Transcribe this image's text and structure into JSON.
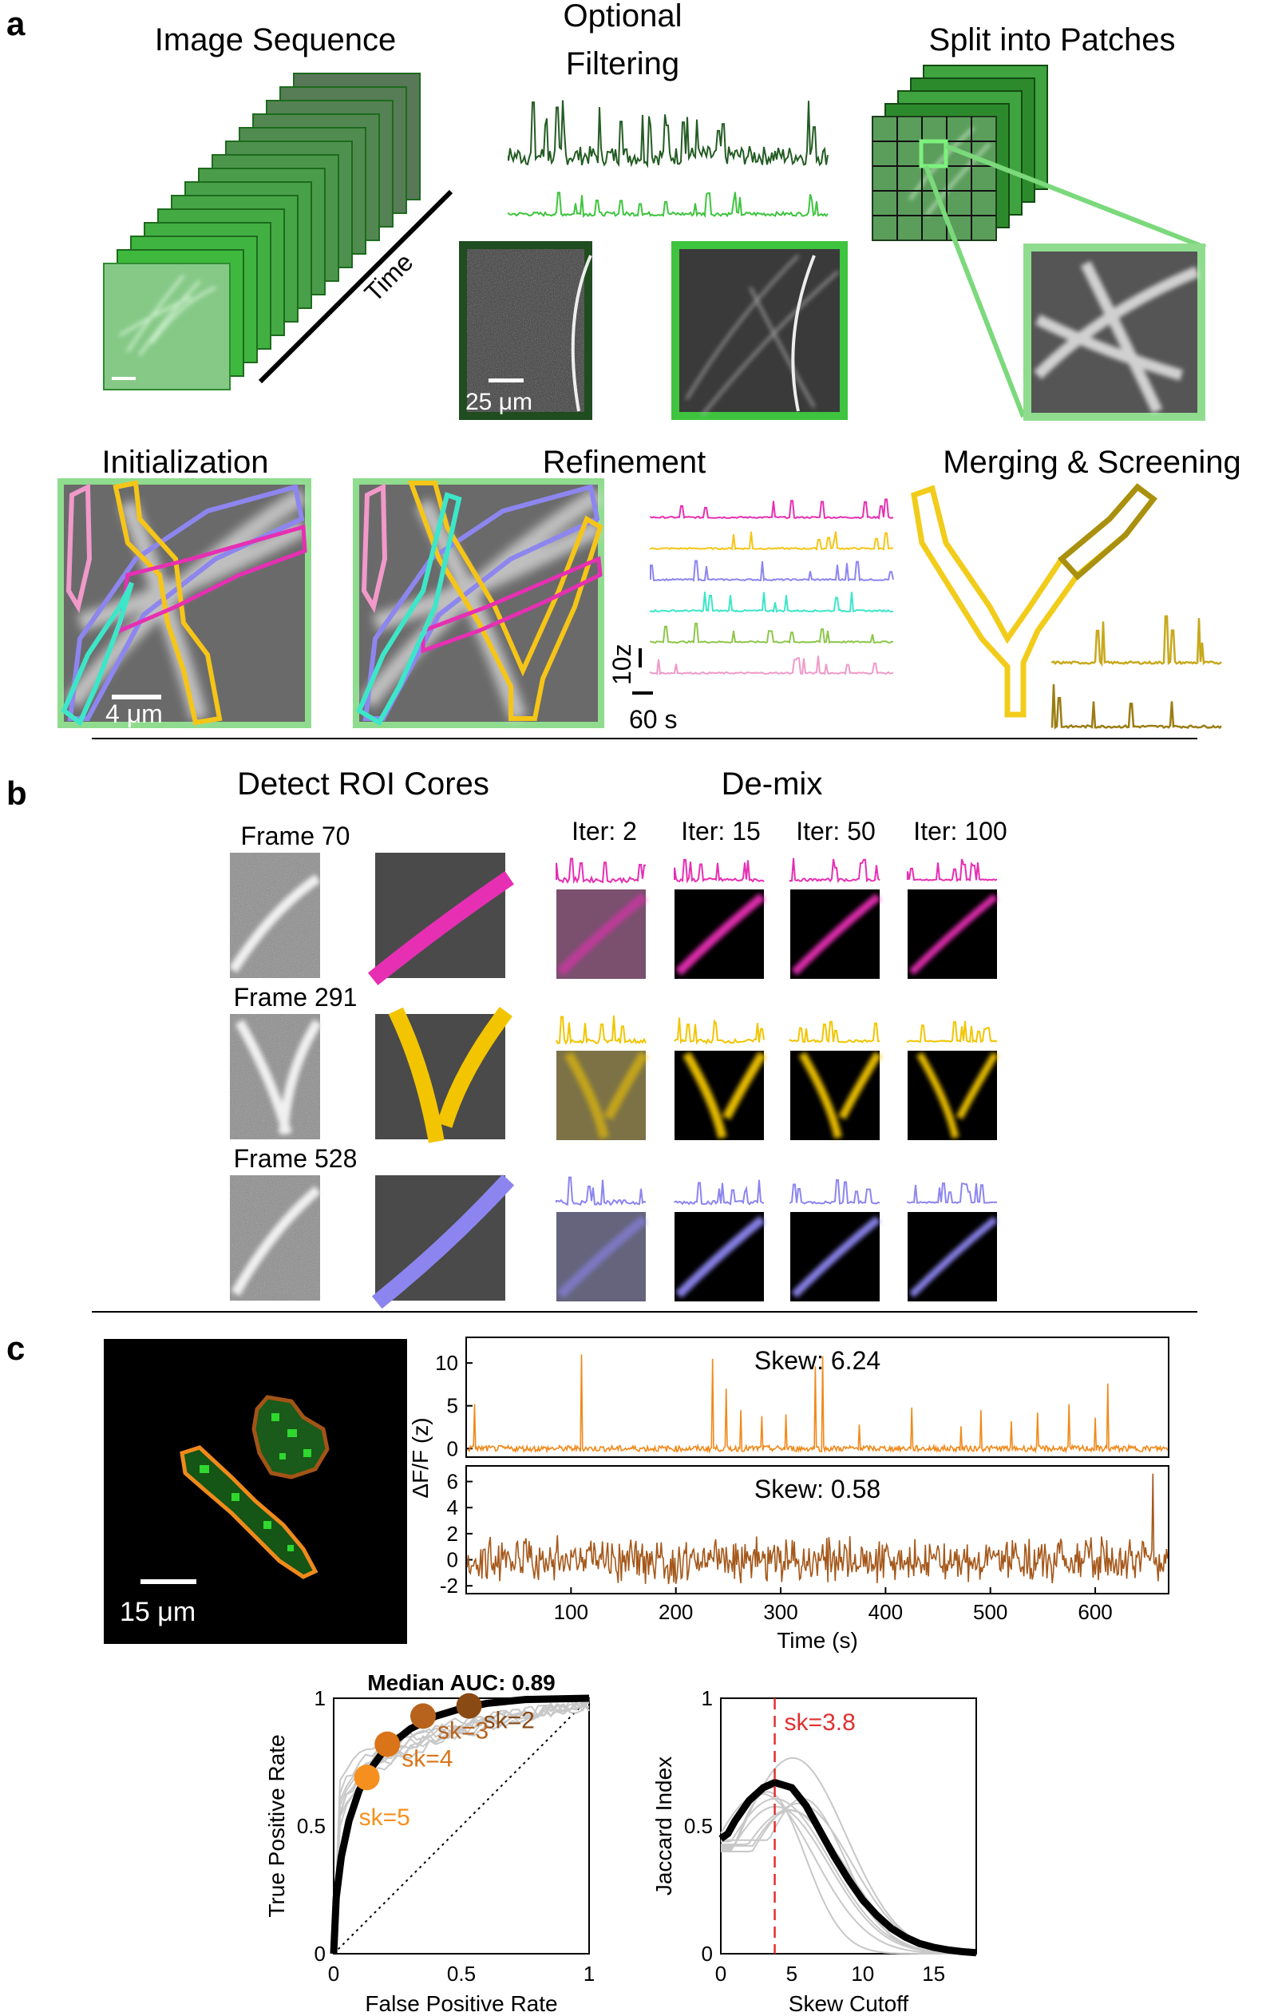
{
  "panel_a": {
    "letter": "a",
    "image_sequence": {
      "title": "Image Sequence",
      "time_label": "Time"
    },
    "filtering": {
      "title_line1": "Optional",
      "title_line2": "Filtering",
      "scale_label": "25 μm"
    },
    "patches": {
      "title": "Split into Patches"
    },
    "initialization": {
      "title": "Initialization",
      "scale_label": "4 μm"
    },
    "refinement": {
      "title": "Refinement"
    },
    "traces_scale": {
      "y_label": "10z",
      "x_label": "60 s"
    },
    "merging": {
      "title": "Merging & Screening"
    }
  },
  "panel_b": {
    "letter": "b",
    "detect_title": "Detect ROI Cores",
    "demix_title": "De-mix",
    "iterations": [
      "Iter: 2",
      "Iter: 15",
      "Iter: 50",
      "Iter: 100"
    ],
    "frames": [
      "Frame 70",
      "Frame 291",
      "Frame 528"
    ]
  },
  "panel_c": {
    "letter": "c",
    "roi_scale_label": "15 μm",
    "colors": {
      "orange": "#f0891b",
      "brown": "#a5581a",
      "gold": "#f2c500",
      "magenta": "#e62fb3",
      "violet": "#8c85ef"
    }
  },
  "chart_data": [
    {
      "type": "line",
      "id": "trace-orange",
      "title": "Skew: 6.24",
      "ylim": [
        -1,
        13
      ],
      "yticks": [
        "0",
        "5",
        "10"
      ],
      "xlim": [
        0,
        670
      ],
      "color": "#f0891b",
      "peaks": [
        [
          8,
          5.2
        ],
        [
          110,
          11
        ],
        [
          235,
          10.5
        ],
        [
          248,
          7
        ],
        [
          262,
          4.5
        ],
        [
          282,
          3.8
        ],
        [
          305,
          4
        ],
        [
          333,
          9.6
        ],
        [
          340,
          10.8
        ],
        [
          375,
          2.8
        ],
        [
          425,
          4.8
        ],
        [
          472,
          2.6
        ],
        [
          491,
          4.5
        ],
        [
          520,
          3.2
        ],
        [
          545,
          4.2
        ],
        [
          575,
          5.2
        ],
        [
          600,
          3.6
        ],
        [
          612,
          7.6
        ]
      ]
    },
    {
      "type": "line",
      "id": "trace-brown",
      "title": "Skew: 0.58",
      "ylabel": "ΔF/F (z)",
      "ylim": [
        -2.6,
        7.2
      ],
      "yticks": [
        "-2",
        "0",
        "2",
        "4",
        "6"
      ],
      "xlim": [
        0,
        670
      ],
      "xticks": [
        "100",
        "200",
        "300",
        "400",
        "500",
        "600"
      ],
      "xlabel": "Time (s)",
      "color": "#a5581a",
      "peaks": [
        [
          655,
          6.6
        ]
      ]
    },
    {
      "type": "line",
      "id": "roc",
      "title": "Median AUC: 0.89",
      "xlabel": "False Positive Rate",
      "ylabel": "True Positive Rate",
      "xlim": [
        0,
        1
      ],
      "ylim": [
        0,
        1
      ],
      "xticks": [
        "0",
        "0.5",
        "1"
      ],
      "yticks": [
        "0",
        "0.5",
        "1"
      ],
      "median_curve": [
        [
          0,
          0
        ],
        [
          0.01,
          0.22
        ],
        [
          0.03,
          0.38
        ],
        [
          0.06,
          0.52
        ],
        [
          0.1,
          0.64
        ],
        [
          0.15,
          0.73
        ],
        [
          0.2,
          0.8
        ],
        [
          0.3,
          0.88
        ],
        [
          0.4,
          0.93
        ],
        [
          0.5,
          0.96
        ],
        [
          0.6,
          0.98
        ],
        [
          0.75,
          0.995
        ],
        [
          1,
          1
        ]
      ],
      "points": [
        {
          "label": "sk=2",
          "fpr": 0.53,
          "tpr": 0.97,
          "color": "#8a4a14"
        },
        {
          "label": "sk=3",
          "fpr": 0.35,
          "tpr": 0.93,
          "color": "#b8631d"
        },
        {
          "label": "sk=4",
          "fpr": 0.21,
          "tpr": 0.82,
          "color": "#d97418"
        },
        {
          "label": "sk=5",
          "fpr": 0.13,
          "tpr": 0.69,
          "color": "#f5901e"
        }
      ]
    },
    {
      "type": "line",
      "id": "jaccard",
      "xlabel": "Skew Cutoff",
      "ylabel": "Jaccard Index",
      "xlim": [
        0,
        18
      ],
      "ylim": [
        0,
        1
      ],
      "xticks": [
        "0",
        "5",
        "10",
        "15"
      ],
      "yticks": [
        "0",
        "0.5",
        "1"
      ],
      "cutoff": 3.8,
      "cutoff_label": "sk=3.8",
      "median_curve": [
        [
          0,
          0.45
        ],
        [
          0.5,
          0.47
        ],
        [
          1,
          0.52
        ],
        [
          2,
          0.6
        ],
        [
          3,
          0.65
        ],
        [
          3.8,
          0.67
        ],
        [
          5,
          0.65
        ],
        [
          6,
          0.58
        ],
        [
          7,
          0.48
        ],
        [
          8,
          0.38
        ],
        [
          9,
          0.29
        ],
        [
          10,
          0.21
        ],
        [
          11,
          0.15
        ],
        [
          12,
          0.1
        ],
        [
          13,
          0.065
        ],
        [
          14,
          0.04
        ],
        [
          15,
          0.025
        ],
        [
          16,
          0.015
        ],
        [
          17,
          0.008
        ],
        [
          18,
          0.004
        ]
      ]
    }
  ]
}
